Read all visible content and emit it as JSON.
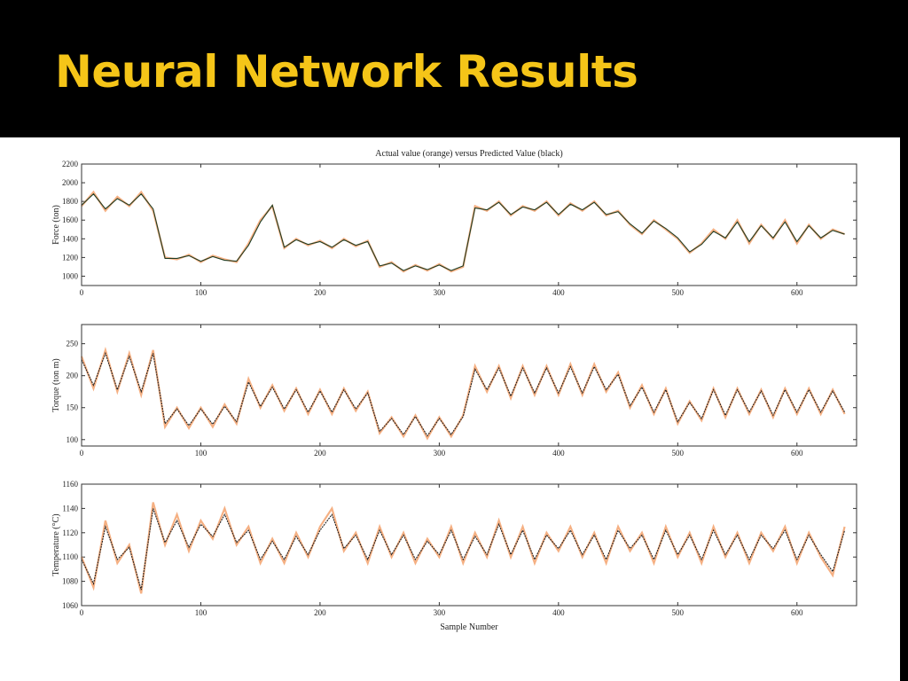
{
  "title": "Neural Network Results",
  "chart_data": [
    {
      "type": "line",
      "title": "Actual value (orange) versus Predicted Value (black)",
      "ylabel": "Force (ton)",
      "x": [
        0,
        10,
        20,
        30,
        40,
        50,
        60,
        70,
        80,
        90,
        100,
        110,
        120,
        130,
        140,
        150,
        160,
        170,
        180,
        190,
        200,
        210,
        220,
        230,
        240,
        250,
        260,
        270,
        280,
        290,
        300,
        310,
        320,
        330,
        340,
        350,
        360,
        370,
        380,
        390,
        400,
        410,
        420,
        430,
        440,
        450,
        460,
        470,
        480,
        490,
        500,
        510,
        520,
        530,
        540,
        550,
        560,
        570,
        580,
        590,
        600,
        610,
        620,
        630,
        640
      ],
      "series": [
        {
          "color": "#f5b083",
          "values": [
            1750,
            1900,
            1700,
            1850,
            1750,
            1900,
            1700,
            1200,
            1180,
            1230,
            1150,
            1220,
            1180,
            1150,
            1350,
            1600,
            1750,
            1300,
            1400,
            1330,
            1380,
            1300,
            1400,
            1320,
            1380,
            1100,
            1150,
            1050,
            1120,
            1060,
            1130,
            1050,
            1100,
            1750,
            1700,
            1800,
            1650,
            1750,
            1700,
            1800,
            1650,
            1780,
            1700,
            1800,
            1650,
            1700,
            1550,
            1450,
            1600,
            1500,
            1400,
            1250,
            1350,
            1500,
            1400,
            1600,
            1350,
            1550,
            1400,
            1600,
            1350,
            1550,
            1400,
            1500,
            1450
          ]
        },
        {
          "color": "#1f3d24",
          "values": [
            1760,
            1880,
            1720,
            1830,
            1760,
            1880,
            1720,
            1190,
            1190,
            1220,
            1160,
            1210,
            1170,
            1160,
            1330,
            1580,
            1760,
            1310,
            1390,
            1340,
            1370,
            1310,
            1390,
            1330,
            1370,
            1110,
            1140,
            1060,
            1110,
            1070,
            1120,
            1060,
            1110,
            1730,
            1710,
            1790,
            1660,
            1740,
            1710,
            1790,
            1660,
            1770,
            1710,
            1790,
            1660,
            1690,
            1560,
            1460,
            1590,
            1510,
            1410,
            1260,
            1340,
            1480,
            1410,
            1580,
            1370,
            1540,
            1410,
            1580,
            1370,
            1540,
            1410,
            1490,
            1450
          ]
        }
      ],
      "xlim": [
        0,
        650
      ],
      "xticks": [
        0,
        100,
        200,
        300,
        400,
        500,
        600
      ],
      "ylim": [
        900,
        2200
      ],
      "yticks": [
        1000,
        1200,
        1400,
        1600,
        1800,
        2000,
        2200
      ]
    },
    {
      "type": "line",
      "ylabel": "Torque (ton m)",
      "x": [
        0,
        10,
        20,
        30,
        40,
        50,
        60,
        70,
        80,
        90,
        100,
        110,
        120,
        130,
        140,
        150,
        160,
        170,
        180,
        190,
        200,
        210,
        220,
        230,
        240,
        250,
        260,
        270,
        280,
        290,
        300,
        310,
        320,
        330,
        340,
        350,
        360,
        370,
        380,
        390,
        400,
        410,
        420,
        430,
        440,
        450,
        460,
        470,
        480,
        490,
        500,
        510,
        520,
        530,
        540,
        550,
        560,
        570,
        580,
        590,
        600,
        610,
        620,
        630,
        640
      ],
      "series": [
        {
          "color": "#f5b083",
          "values": [
            230,
            180,
            240,
            175,
            235,
            170,
            240,
            120,
            150,
            118,
            150,
            120,
            155,
            125,
            195,
            150,
            185,
            145,
            180,
            140,
            178,
            140,
            180,
            145,
            175,
            110,
            135,
            105,
            138,
            102,
            135,
            105,
            138,
            215,
            175,
            215,
            165,
            215,
            170,
            215,
            170,
            218,
            170,
            218,
            175,
            205,
            150,
            185,
            140,
            180,
            125,
            160,
            130,
            180,
            135,
            180,
            140,
            178,
            135,
            180,
            140,
            180,
            140,
            178,
            140
          ]
        },
        {
          "color": "#222222",
          "values": [
            225,
            185,
            235,
            178,
            230,
            175,
            235,
            125,
            148,
            122,
            148,
            124,
            152,
            128,
            190,
            152,
            182,
            148,
            178,
            143,
            176,
            143,
            178,
            148,
            173,
            113,
            133,
            108,
            136,
            106,
            133,
            108,
            136,
            210,
            178,
            212,
            168,
            212,
            173,
            212,
            173,
            214,
            173,
            214,
            178,
            202,
            153,
            182,
            143,
            178,
            128,
            158,
            133,
            178,
            138,
            178,
            143,
            176,
            138,
            178,
            143,
            178,
            143,
            176,
            143
          ]
        }
      ],
      "xlim": [
        0,
        650
      ],
      "xticks": [
        0,
        100,
        200,
        300,
        400,
        500,
        600
      ],
      "ylim": [
        90,
        280
      ],
      "yticks": [
        100,
        150,
        200,
        250
      ]
    },
    {
      "type": "line",
      "ylabel": "Temperature (°C)",
      "xlabel": "Sample Number",
      "x": [
        0,
        10,
        20,
        30,
        40,
        50,
        60,
        70,
        80,
        90,
        100,
        110,
        120,
        130,
        140,
        150,
        160,
        170,
        180,
        190,
        200,
        210,
        220,
        230,
        240,
        250,
        260,
        270,
        280,
        290,
        300,
        310,
        320,
        330,
        340,
        350,
        360,
        370,
        380,
        390,
        400,
        410,
        420,
        430,
        440,
        450,
        460,
        470,
        480,
        490,
        500,
        510,
        520,
        530,
        540,
        550,
        560,
        570,
        580,
        590,
        600,
        610,
        620,
        630,
        640
      ],
      "series": [
        {
          "color": "#f5b083",
          "values": [
            1100,
            1075,
            1130,
            1095,
            1110,
            1070,
            1145,
            1110,
            1135,
            1105,
            1130,
            1115,
            1140,
            1110,
            1125,
            1095,
            1115,
            1095,
            1120,
            1100,
            1125,
            1140,
            1105,
            1120,
            1095,
            1125,
            1100,
            1120,
            1095,
            1115,
            1100,
            1125,
            1095,
            1120,
            1100,
            1130,
            1100,
            1125,
            1095,
            1120,
            1105,
            1125,
            1100,
            1120,
            1095,
            1125,
            1105,
            1120,
            1095,
            1125,
            1100,
            1120,
            1095,
            1125,
            1100,
            1120,
            1095,
            1120,
            1105,
            1125,
            1095,
            1120,
            1100,
            1085,
            1125
          ]
        },
        {
          "color": "#222222",
          "values": [
            1098,
            1078,
            1125,
            1098,
            1108,
            1073,
            1140,
            1112,
            1130,
            1108,
            1127,
            1117,
            1135,
            1112,
            1122,
            1098,
            1113,
            1098,
            1117,
            1102,
            1122,
            1135,
            1107,
            1118,
            1098,
            1122,
            1102,
            1118,
            1098,
            1113,
            1102,
            1122,
            1098,
            1117,
            1102,
            1127,
            1102,
            1122,
            1098,
            1118,
            1107,
            1122,
            1102,
            1118,
            1098,
            1122,
            1107,
            1118,
            1098,
            1122,
            1102,
            1118,
            1098,
            1122,
            1102,
            1118,
            1098,
            1118,
            1107,
            1122,
            1098,
            1118,
            1102,
            1088,
            1122
          ]
        }
      ],
      "xlim": [
        0,
        650
      ],
      "xticks": [
        0,
        100,
        200,
        300,
        400,
        500,
        600
      ],
      "ylim": [
        1060,
        1160
      ],
      "yticks": [
        1060,
        1080,
        1100,
        1120,
        1140,
        1160
      ]
    }
  ]
}
